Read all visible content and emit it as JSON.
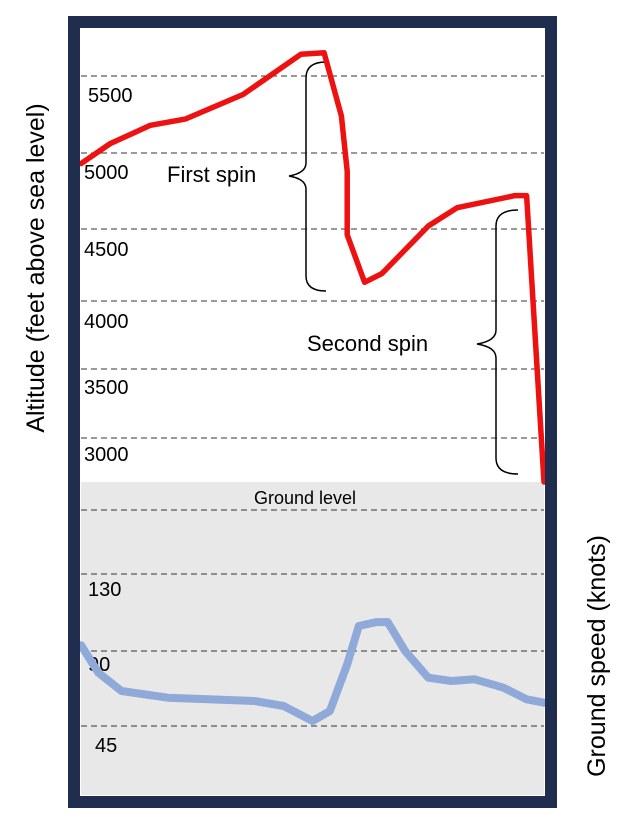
{
  "chart_data": [
    {
      "type": "line",
      "panel": "altitude",
      "ylabel": "Altitude (feet above sea level)",
      "y_ticks": [
        "5500",
        "5000",
        "4500",
        "4000",
        "3500",
        "3000"
      ],
      "series": [
        {
          "color": "#ee1111",
          "points": [
            [
              0,
              4930
            ],
            [
              5,
              5060
            ],
            [
              12,
              5180
            ],
            [
              18,
              5220
            ],
            [
              28,
              5380
            ],
            [
              38,
              5640
            ],
            [
              42,
              5650
            ],
            [
              45,
              5240
            ],
            [
              46,
              4880
            ],
            [
              46,
              4460
            ],
            [
              49,
              4130
            ],
            [
              52,
              4190
            ],
            [
              60,
              4520
            ],
            [
              65,
              4640
            ],
            [
              75,
              4720
            ],
            [
              77,
              4720
            ],
            [
              80,
              2780
            ]
          ]
        }
      ],
      "annotations": [
        {
          "label": "First spin"
        },
        {
          "label": "Second spin"
        }
      ],
      "reference_label": "Ground level",
      "grid": "dashed horizontal"
    },
    {
      "type": "line",
      "panel": "ground-speed",
      "ylabel": "Ground speed (knots)",
      "y_ticks": [
        "130",
        "90",
        "45"
      ],
      "series": [
        {
          "color": "#8fa9d8",
          "points": [
            [
              0,
              93
            ],
            [
              3,
              77
            ],
            [
              7,
              66
            ],
            [
              15,
              62
            ],
            [
              22,
              61
            ],
            [
              30,
              60
            ],
            [
              35,
              57
            ],
            [
              40,
              48
            ],
            [
              43,
              54
            ],
            [
              46,
              82
            ],
            [
              48,
              103
            ],
            [
              51,
              105
            ],
            [
              53,
              105
            ],
            [
              56,
              90
            ],
            [
              60,
              74
            ],
            [
              64,
              72
            ],
            [
              68,
              73
            ],
            [
              71,
              70
            ],
            [
              73,
              68
            ],
            [
              77,
              61
            ],
            [
              80,
              59
            ]
          ]
        }
      ],
      "grid": "dashed horizontal"
    }
  ],
  "colors": {
    "frame": "#1f2d4f",
    "ground_fill": "#e8e8e8"
  }
}
